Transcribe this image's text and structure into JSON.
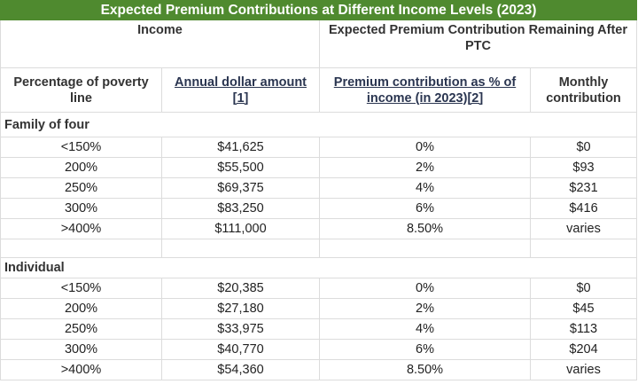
{
  "table": {
    "title": "Expected Premium Contributions at Different Income Levels (2023)",
    "group_headers": [
      "Income",
      "Expected Premium Contribution Remaining After PTC"
    ],
    "columns": [
      "Percentage of poverty line",
      "Annual dollar amount [1]",
      "Premium contribution as % of income (in 2023)[2]",
      "Monthly contribution"
    ],
    "sections": [
      {
        "label": "Family of four",
        "rows": [
          [
            "<150%",
            "$41,625",
            "0%",
            "$0"
          ],
          [
            "200%",
            "$55,500",
            "2%",
            "$93"
          ],
          [
            "250%",
            "$69,375",
            "4%",
            "$231"
          ],
          [
            "300%",
            "$83,250",
            "6%",
            "$416"
          ],
          [
            ">400%",
            "$111,000",
            "8.50%",
            "varies"
          ]
        ]
      },
      {
        "label": "Individual",
        "rows": [
          [
            "<150%",
            "$20,385",
            "0%",
            "$0"
          ],
          [
            "200%",
            "$27,180",
            "2%",
            "$45"
          ],
          [
            "250%",
            "$33,975",
            "4%",
            "$113"
          ],
          [
            "300%",
            "$40,770",
            "6%",
            "$204"
          ],
          [
            ">400%",
            "$54,360",
            "8.50%",
            "varies"
          ]
        ]
      }
    ]
  }
}
